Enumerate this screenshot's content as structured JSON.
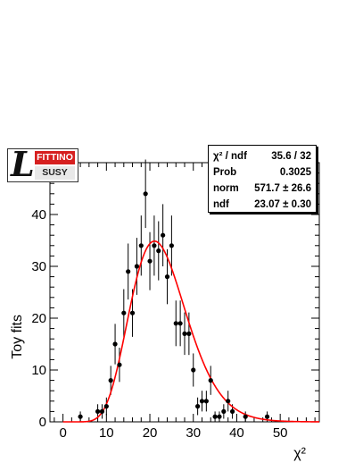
{
  "chart_data": {
    "type": "scatter",
    "xlabel": "χ²",
    "ylabel": "Toy fits",
    "xlim": [
      -3,
      59
    ],
    "ylim": [
      0,
      50
    ],
    "x_ticks": [
      0,
      10,
      20,
      30,
      40,
      50
    ],
    "y_ticks": [
      0,
      10,
      20,
      30,
      40
    ],
    "points": [
      {
        "x": 4,
        "y": 1,
        "err": 1.0
      },
      {
        "x": 8,
        "y": 2,
        "err": 1.4
      },
      {
        "x": 9,
        "y": 2,
        "err": 1.4
      },
      {
        "x": 10,
        "y": 3,
        "err": 1.7
      },
      {
        "x": 11,
        "y": 8,
        "err": 2.8
      },
      {
        "x": 12,
        "y": 15,
        "err": 3.9
      },
      {
        "x": 13,
        "y": 11,
        "err": 3.3
      },
      {
        "x": 14,
        "y": 21,
        "err": 4.6
      },
      {
        "x": 15,
        "y": 29,
        "err": 5.4
      },
      {
        "x": 16,
        "y": 21,
        "err": 4.6
      },
      {
        "x": 17,
        "y": 30,
        "err": 5.5
      },
      {
        "x": 18,
        "y": 34,
        "err": 5.8
      },
      {
        "x": 19,
        "y": 44,
        "err": 6.6
      },
      {
        "x": 20,
        "y": 31,
        "err": 5.6
      },
      {
        "x": 21,
        "y": 34,
        "err": 5.8
      },
      {
        "x": 22,
        "y": 33,
        "err": 5.7
      },
      {
        "x": 23,
        "y": 36,
        "err": 6.0
      },
      {
        "x": 24,
        "y": 28,
        "err": 5.3
      },
      {
        "x": 25,
        "y": 34,
        "err": 5.8
      },
      {
        "x": 26,
        "y": 19,
        "err": 4.4
      },
      {
        "x": 27,
        "y": 19,
        "err": 4.4
      },
      {
        "x": 28,
        "y": 17,
        "err": 4.1
      },
      {
        "x": 29,
        "y": 17,
        "err": 4.1
      },
      {
        "x": 30,
        "y": 10,
        "err": 3.2
      },
      {
        "x": 31,
        "y": 3,
        "err": 1.7
      },
      {
        "x": 32,
        "y": 4,
        "err": 2.0
      },
      {
        "x": 33,
        "y": 4,
        "err": 2.0
      },
      {
        "x": 34,
        "y": 8,
        "err": 2.8
      },
      {
        "x": 35,
        "y": 1,
        "err": 1.0
      },
      {
        "x": 36,
        "y": 1,
        "err": 1.0
      },
      {
        "x": 37,
        "y": 2,
        "err": 1.4
      },
      {
        "x": 38,
        "y": 4,
        "err": 2.0
      },
      {
        "x": 39,
        "y": 2,
        "err": 1.4
      },
      {
        "x": 42,
        "y": 1,
        "err": 1.0
      },
      {
        "x": 47,
        "y": 1,
        "err": 1.0
      }
    ],
    "fit": {
      "function": "chi2_pdf",
      "norm": 571.7,
      "ndf": 23.07,
      "color": "#ff0000"
    },
    "marker_color": "#000000",
    "stats": [
      {
        "label": "χ² / ndf",
        "value": "35.6 / 32"
      },
      {
        "label": "Prob",
        "value": "0.3025"
      },
      {
        "label": "norm",
        "value": "571.7 ± 26.6"
      },
      {
        "label": "ndf",
        "value": "23.07 ± 0.30"
      }
    ]
  },
  "logo": {
    "top_text": "FITTINO",
    "bottom_text": "SUSY",
    "letter": "L",
    "accent": "#d61f1f"
  }
}
